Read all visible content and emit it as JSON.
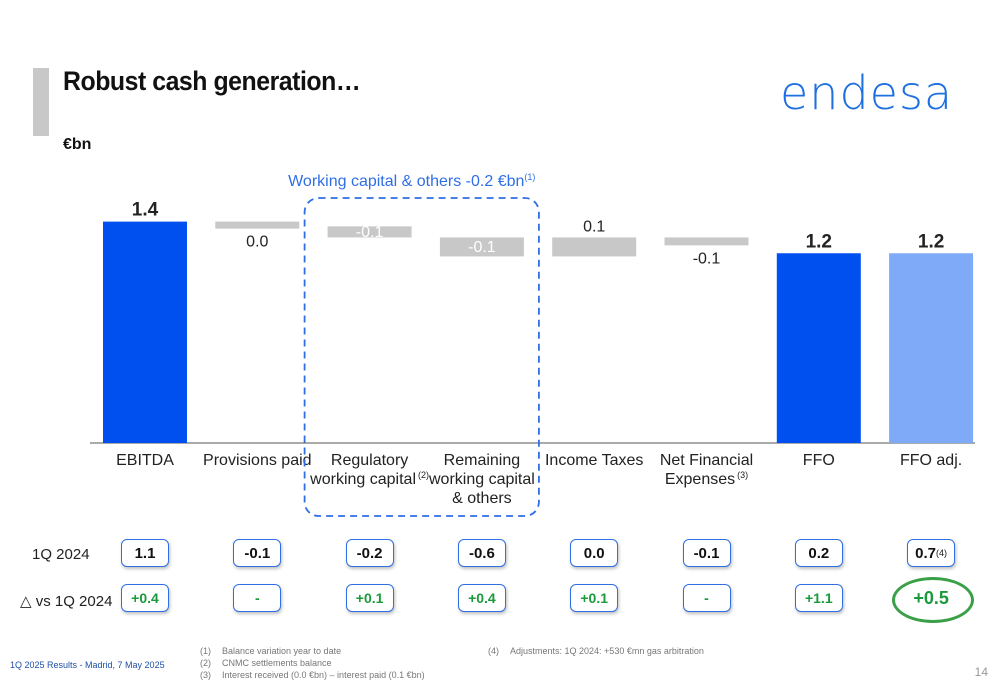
{
  "title": "Robust cash generation…",
  "logo": "endesa",
  "unit": "€bn",
  "colors": {
    "blue": "#0050f0",
    "light_blue": "#7faaf8",
    "grey": "#c8c8c8",
    "green": "#1a9a3a",
    "box_border": "#2f6fe6"
  },
  "chart_data": {
    "type": "bar",
    "subtype": "waterfall",
    "categories": [
      "EBITDA",
      "Provisions paid",
      "Regulatory working capital",
      "Remaining working capital & others",
      "Income Taxes",
      "Net Financial Expenses",
      "FFO",
      "FFO adj."
    ],
    "category_lines": [
      [
        "EBITDA"
      ],
      [
        "Provisions paid"
      ],
      [
        "Regulatory",
        "working capital"
      ],
      [
        "Remaining",
        "working capital",
        "& others"
      ],
      [
        "Income Taxes"
      ],
      [
        "Net Financial",
        "Expenses"
      ],
      [
        "FFO"
      ],
      [
        "FFO adj."
      ]
    ],
    "category_sups": [
      "",
      "",
      "(2)",
      "",
      "",
      "(3)",
      "",
      ""
    ],
    "value_labels": [
      "1.4",
      "0.0",
      "-0.1",
      "-0.1",
      "0.1",
      "-0.1",
      "1.2",
      "1.2"
    ],
    "bars": [
      {
        "kind": "total",
        "start": 0,
        "end": 1.4
      },
      {
        "kind": "delta",
        "start": 1.4,
        "end": 1.37
      },
      {
        "kind": "delta",
        "start": 1.37,
        "end": 1.3
      },
      {
        "kind": "delta",
        "start": 1.3,
        "end": 1.18
      },
      {
        "kind": "delta",
        "start": 1.18,
        "end": 1.3
      },
      {
        "kind": "delta",
        "start": 1.3,
        "end": 1.25
      },
      {
        "kind": "total",
        "start": 0,
        "end": 1.2
      },
      {
        "kind": "total_adj",
        "start": 0,
        "end": 1.2
      }
    ],
    "ylim": [
      0,
      1.6
    ],
    "group_annotation": {
      "text": "Working capital & others -0.2 €bn",
      "sup": "(1)",
      "covers": [
        2,
        3
      ]
    }
  },
  "rows": [
    {
      "label": "1Q 2024",
      "values": [
        "1.1",
        "-0.1",
        "-0.2",
        "-0.6",
        "0.0",
        "-0.1",
        "0.2",
        "0.7"
      ],
      "sups": [
        "",
        "",
        "",
        "",
        "",
        "",
        "",
        "(4)"
      ]
    },
    {
      "label": "△ vs 1Q 2024",
      "values": [
        "+0.4",
        "-",
        "+0.1",
        "+0.4",
        "+0.1",
        "-",
        "+1.1",
        "+0.5"
      ]
    }
  ],
  "footer": "1Q 2025 Results - Madrid, 7 May 2025",
  "notes_left": [
    {
      "num": "(1)",
      "text": "Balance variation year to date"
    },
    {
      "num": "(2)",
      "text": "CNMC settlements balance"
    },
    {
      "num": "(3)",
      "text": "Interest received (0.0 €bn) – interest paid (0.1 €bn)"
    }
  ],
  "notes_right": [
    {
      "num": "(4)",
      "text": "Adjustments: 1Q 2024: +530 €mn gas arbitration"
    }
  ],
  "page_number": "14"
}
